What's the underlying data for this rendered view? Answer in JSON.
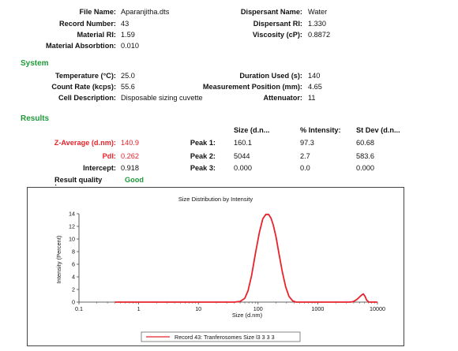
{
  "header": {
    "file_name": {
      "label": "File Name:",
      "value": "Aparanjitha.dts"
    },
    "record_number": {
      "label": "Record Number:",
      "value": "43"
    },
    "material_ri": {
      "label": "Material RI:",
      "value": "1.59"
    },
    "material_absorption": {
      "label": "Material Absorbtion:",
      "value": "0.010"
    },
    "dispersant_name": {
      "label": "Dispersant Name:",
      "value": "Water"
    },
    "dispersant_ri": {
      "label": "Dispersant RI:",
      "value": "1.330"
    },
    "viscosity": {
      "label": "Viscosity (cP):",
      "value": "0.8872"
    }
  },
  "system": {
    "title": "System",
    "temperature": {
      "label": "Temperature (°C):",
      "value": "25.0"
    },
    "count_rate": {
      "label": "Count Rate (kcps):",
      "value": "55.6"
    },
    "cell_description": {
      "label": "Cell Description:",
      "value": "Disposable sizing cuvette"
    },
    "duration_used": {
      "label": "Duration Used (s):",
      "value": "140"
    },
    "measurement_position": {
      "label": "Measurement Position (mm):",
      "value": "4.65"
    },
    "attenuator": {
      "label": "Attenuator:",
      "value": "11"
    }
  },
  "results": {
    "title": "Results",
    "z_average": {
      "label": "Z-Average (d.nm):",
      "value": "140.9"
    },
    "pdi": {
      "label": "PdI:",
      "value": "0.262"
    },
    "intercept": {
      "label": "Intercept:",
      "value": "0.918"
    },
    "result_quality": {
      "label": "Result quality",
      "colon": ":",
      "value": "Good"
    },
    "columns": [
      "Size (d.n...",
      "% Intensity:",
      "St Dev (d.n..."
    ],
    "peaks": [
      {
        "label": "Peak 1:",
        "size": "160.1",
        "intensity": "97.3",
        "stdev": "60.68"
      },
      {
        "label": "Peak 2:",
        "size": "5044",
        "intensity": "2.7",
        "stdev": "583.6"
      },
      {
        "label": "Peak 3:",
        "size": "0.000",
        "intensity": "0.0",
        "stdev": "0.000"
      }
    ]
  },
  "chart_data": {
    "type": "line",
    "title": "Size Distribution by Intensity",
    "xlabel": "Size (d.nm)",
    "ylabel": "Intensity (Percent)",
    "xscale": "log",
    "xlim": [
      0.1,
      10000
    ],
    "ylim": [
      0,
      14
    ],
    "xticks": [
      0.1,
      1,
      10,
      100,
      1000,
      10000
    ],
    "xtick_labels": [
      "0.1",
      "1",
      "10",
      "100",
      "1000",
      "10000"
    ],
    "yticks": [
      0,
      2,
      4,
      6,
      8,
      10,
      12,
      14
    ],
    "ytick_labels": [
      "0",
      "2",
      "4",
      "6",
      "8",
      "10",
      "12",
      "14"
    ],
    "grid": false,
    "legend": "bottom",
    "series_color": "#e8232b",
    "series": [
      {
        "name": "Record 43: Tranferosomes Size l3 3 3 3",
        "x": [
          0.4,
          40,
          50,
          60,
          68,
          78,
          90,
          105,
          120,
          135,
          150,
          165,
          180,
          200,
          225,
          255,
          290,
          330,
          380,
          430,
          3500,
          4000,
          4500,
          5000,
          5400,
          5800,
          6200,
          6600,
          7200,
          10000
        ],
        "y": [
          0,
          0,
          0.1,
          0.6,
          1.8,
          4.2,
          7.6,
          11.0,
          13.2,
          13.9,
          13.9,
          13.3,
          12.2,
          10.3,
          7.6,
          4.8,
          2.4,
          0.9,
          0.2,
          0,
          0,
          0.1,
          0.4,
          0.8,
          1.1,
          1.3,
          0.9,
          0.3,
          0,
          0
        ]
      }
    ]
  }
}
